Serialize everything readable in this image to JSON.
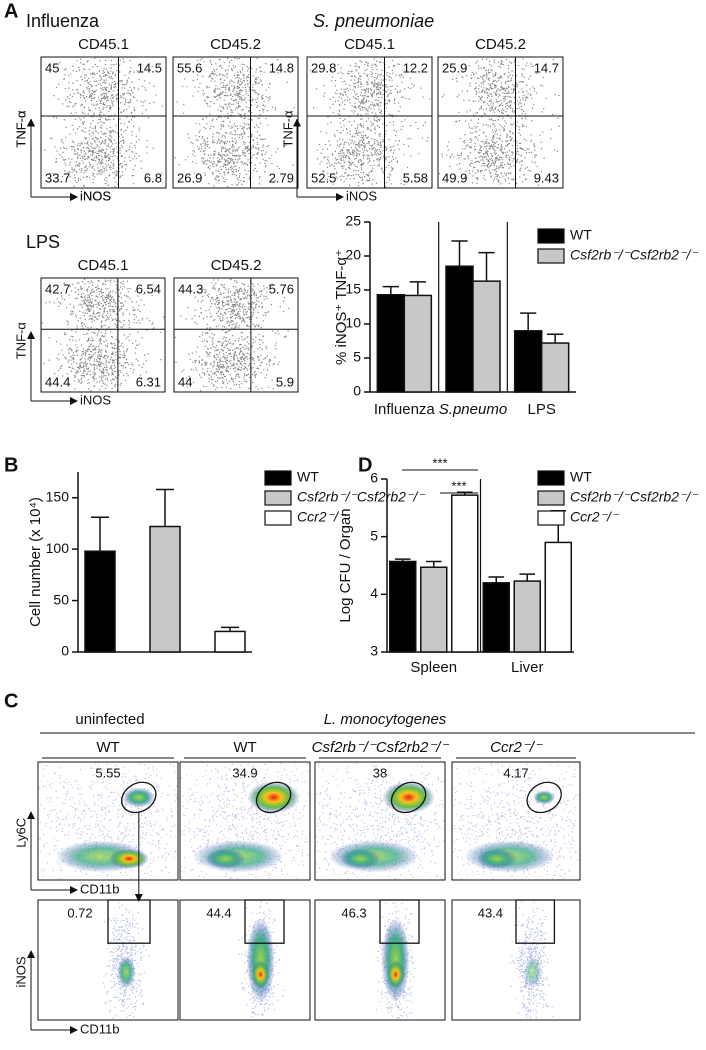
{
  "chart_data": [
    {
      "type": "bar",
      "ylabel": "% iNOS⁺ TNF-α⁺",
      "categories": [
        "Influenza",
        "S.pneumo",
        "LPS"
      ],
      "series": [
        {
          "name": "WT",
          "color": "#000000",
          "values": [
            14.3,
            18.5,
            9
          ],
          "errors": [
            1.2,
            3.7,
            2.6
          ]
        },
        {
          "name": "Csf2rb⁻/⁻Csf2rb2⁻/⁻",
          "color": "#c8c8c8",
          "values": [
            14.2,
            16.3,
            7.2
          ],
          "errors": [
            2,
            4.2,
            1.3
          ]
        }
      ],
      "ylim": [
        0,
        25
      ],
      "yticks": [
        0,
        5,
        10,
        15,
        20,
        25
      ]
    },
    {
      "type": "bar",
      "ylabel": "Cell number (x 10⁴)",
      "categories": [
        null
      ],
      "series": [
        {
          "name": "WT",
          "color": "#000000",
          "values": [
            98
          ],
          "errors": [
            33
          ]
        },
        {
          "name": "Csf2rb⁻/⁻Csf2rb2⁻/⁻",
          "color": "#c8c8c8",
          "values": [
            122
          ],
          "errors": [
            36
          ]
        },
        {
          "name": "Ccr2⁻/⁻",
          "color": "#ffffff",
          "values": [
            20
          ],
          "errors": [
            4
          ]
        }
      ],
      "ylim": [
        0,
        175
      ],
      "yticks": [
        0,
        50,
        100,
        150
      ]
    },
    {
      "type": "bar",
      "ylabel": "Log CFU / Organ",
      "categories": [
        "Spleen",
        "Liver"
      ],
      "series": [
        {
          "name": "WT",
          "color": "#000000",
          "values": [
            4.57,
            4.2
          ],
          "errors": [
            0.04,
            0.1
          ]
        },
        {
          "name": "Csf2rb⁻/⁻Csf2rb2⁻/⁻",
          "color": "#c8c8c8",
          "values": [
            4.47,
            4.23
          ],
          "errors": [
            0.1,
            0.12
          ]
        },
        {
          "name": "Ccr2⁻/⁻",
          "color": "#ffffff",
          "values": [
            5.72,
            4.9
          ],
          "errors": [
            0.05,
            0.55
          ]
        }
      ],
      "ylim": [
        3,
        6
      ],
      "yticks": [
        3,
        4,
        5,
        6
      ],
      "annotations": [
        "***",
        "***"
      ]
    }
  ],
  "figure": {
    "panel_labels": [
      "A",
      "B",
      "C",
      "D"
    ],
    "flow_a": {
      "y_label": "TNF-α",
      "x_label": "iNOS",
      "groups": [
        {
          "title": "Influenza",
          "plots": [
            {
              "header": "CD45.1",
              "quadrants": [
                45,
                14.5,
                33.7,
                6.8
              ]
            },
            {
              "header": "CD45.2",
              "quadrants": [
                55.6,
                14.8,
                26.9,
                2.79
              ]
            }
          ]
        },
        {
          "title": "S. pneumoniae",
          "plots": [
            {
              "header": "CD45.1",
              "quadrants": [
                29.8,
                12.2,
                52.5,
                5.58
              ]
            },
            {
              "header": "CD45.2",
              "quadrants": [
                25.9,
                14.7,
                49.9,
                9.43
              ]
            }
          ]
        },
        {
          "title": "LPS",
          "plots": [
            {
              "header": "CD45.1",
              "quadrants": [
                42.7,
                6.54,
                44.4,
                6.31
              ]
            },
            {
              "header": "CD45.2",
              "quadrants": [
                44.3,
                5.76,
                44,
                5.9
              ]
            }
          ]
        }
      ]
    },
    "flow_c": {
      "uninfected": "uninfected",
      "infected": "L. monocytogenes",
      "columns": [
        "WT",
        "WT",
        "Csf2rb⁻/⁻Csf2rb2⁻/⁻",
        "Ccr2⁻/⁻"
      ],
      "top_gates": [
        5.55,
        34.9,
        38,
        4.17
      ],
      "bottom_gates": [
        0.72,
        44.4,
        46.3,
        43.4
      ],
      "top_y_label": "Ly6C",
      "top_x_label": "CD11b",
      "bottom_y_label": "iNOS",
      "bottom_x_label": "CD11b"
    }
  }
}
